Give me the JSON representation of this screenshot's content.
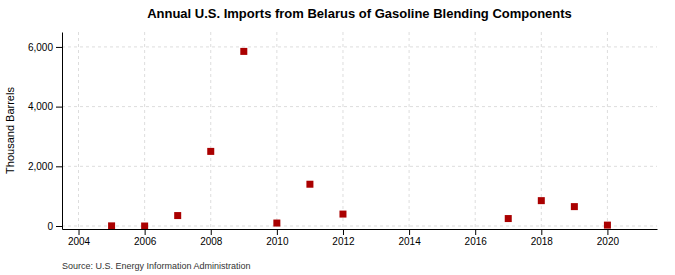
{
  "chart_data": {
    "type": "scatter",
    "title": "Annual U.S. Imports from Belarus of Gasoline Blending Components",
    "ylabel": "Thousand Barrels",
    "annotation": "Source: U.S. Energy Information Administration",
    "x": [
      2005,
      2006,
      2007,
      2008,
      2009,
      2010,
      2011,
      2012,
      2017,
      2018,
      2019,
      2020
    ],
    "values": [
      5,
      0,
      350,
      2500,
      5850,
      100,
      1400,
      400,
      250,
      850,
      650,
      30
    ],
    "color": "#aa0000",
    "marker": "square",
    "grid": true,
    "xlim": [
      2003.5,
      2021.5
    ],
    "ylim": [
      -100,
      6500
    ],
    "xticks": [
      2004,
      2006,
      2008,
      2010,
      2012,
      2014,
      2016,
      2018,
      2020
    ],
    "yticks": [
      0,
      {
        "value": 2000,
        "label": "2,000"
      },
      {
        "value": 4000,
        "label": "4,000"
      },
      {
        "value": 6000,
        "label": "6,000"
      }
    ]
  }
}
